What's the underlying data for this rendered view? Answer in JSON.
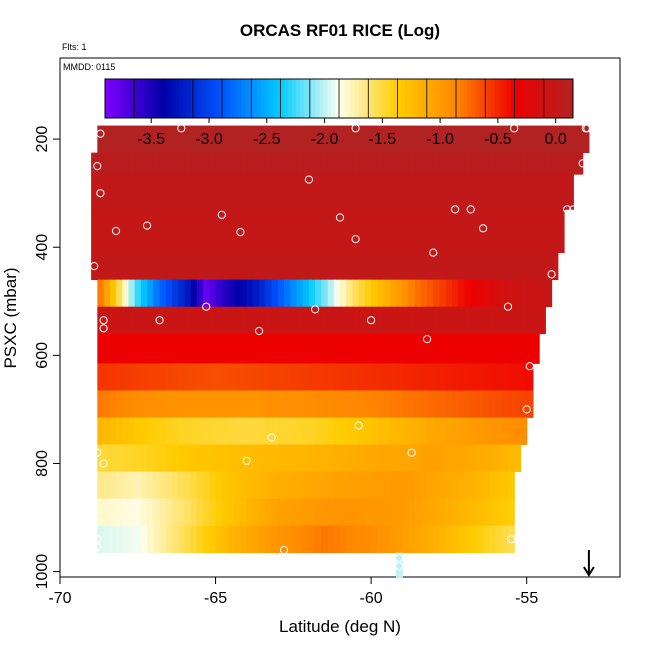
{
  "chart_data": {
    "type": "heatmap",
    "title": "ORCAS RF01 RICE (Log)",
    "flights_note": "Flts: 1",
    "date_note": "MMDD: 0115",
    "xlabel": "Latitude (deg N)",
    "ylabel": "PSXC (mbar)",
    "xlim": [
      -70,
      -52
    ],
    "ylim": [
      1010,
      50
    ],
    "x_ticks": [
      -70,
      -65,
      -60,
      -55
    ],
    "x_tick_labels": [
      "-70",
      "-65",
      "-60",
      "-55"
    ],
    "y_ticks": [
      200,
      400,
      600,
      800,
      1000
    ],
    "y_tick_labels": [
      "200",
      "400",
      "600",
      "800",
      "1000"
    ],
    "colorbar": {
      "range": [
        -3.9,
        0.15
      ],
      "ticks": [
        -3.5,
        -3.0,
        -2.5,
        -2.0,
        -1.5,
        -1.0,
        -0.5,
        0.0
      ],
      "tick_labels": [
        "-3.5",
        "-3.0",
        "-2.5",
        "-2.0",
        "-1.5",
        "-1.0",
        "-0.5",
        "0.0"
      ],
      "colors": [
        "#7f00ff",
        "#0000aa",
        "#0055ff",
        "#00ccff",
        "#ffffee",
        "#ffcc00",
        "#ff8800",
        "#ee0000",
        "#b22222"
      ]
    },
    "rows": [
      {
        "p_top": 175,
        "p_bot": 225,
        "x_min": -68.8,
        "x_max": -53.0,
        "type": "flat",
        "value": 0.15
      },
      {
        "p_top": 225,
        "p_bot": 265,
        "x_min": -69.0,
        "x_max": -53.2,
        "type": "flat",
        "value": 0.08
      },
      {
        "p_top": 265,
        "p_bot": 330,
        "x_min": -69.0,
        "x_max": -53.5,
        "type": "flat",
        "value": 0.02
      },
      {
        "p_top": 330,
        "p_bot": 410,
        "x_min": -69.0,
        "x_max": -53.8,
        "type": "flat",
        "value": 0.0
      },
      {
        "p_top": 410,
        "p_bot": 460,
        "x_min": -69.0,
        "x_max": -54.0,
        "type": "flat",
        "value": 0.02
      },
      {
        "p_top": 460,
        "p_bot": 510,
        "x_min": -68.8,
        "x_max": -54.2,
        "type": "knots",
        "knots": [
          [
            -68.8,
            -0.7
          ],
          [
            -68.2,
            -1.4
          ],
          [
            -67.6,
            -2.2
          ],
          [
            -66.8,
            -2.8
          ],
          [
            -65.8,
            -3.3
          ],
          [
            -65.3,
            -3.8
          ],
          [
            -64.6,
            -3.5
          ],
          [
            -63.6,
            -3.2
          ],
          [
            -62.6,
            -2.7
          ],
          [
            -61.6,
            -2.2
          ],
          [
            -60.6,
            -1.6
          ],
          [
            -59.6,
            -1.2
          ],
          [
            -58.6,
            -0.8
          ],
          [
            -57.6,
            -0.55
          ],
          [
            -56.6,
            -0.3
          ],
          [
            -55.6,
            -0.1
          ],
          [
            -54.2,
            0.0
          ]
        ]
      },
      {
        "p_top": 510,
        "p_bot": 560,
        "x_min": -68.8,
        "x_max": -54.4,
        "type": "flat",
        "value": -0.05
      },
      {
        "p_top": 560,
        "p_bot": 615,
        "x_min": -68.8,
        "x_max": -54.6,
        "type": "flat",
        "value": -0.35
      },
      {
        "p_top": 615,
        "p_bot": 665,
        "x_min": -68.8,
        "x_max": -54.8,
        "type": "knots",
        "knots": [
          [
            -68.8,
            -0.55
          ],
          [
            -67.0,
            -0.6
          ],
          [
            -65.0,
            -0.65
          ],
          [
            -63.0,
            -0.6
          ],
          [
            -61.0,
            -0.55
          ],
          [
            -59.0,
            -0.5
          ],
          [
            -57.0,
            -0.45
          ],
          [
            -54.8,
            -0.4
          ]
        ]
      },
      {
        "p_top": 665,
        "p_bot": 715,
        "x_min": -68.8,
        "x_max": -54.8,
        "type": "knots",
        "knots": [
          [
            -68.8,
            -0.8
          ],
          [
            -67.5,
            -0.9
          ],
          [
            -66.0,
            -0.95
          ],
          [
            -64.0,
            -0.95
          ],
          [
            -62.0,
            -0.9
          ],
          [
            -60.0,
            -0.85
          ],
          [
            -58.0,
            -0.75
          ],
          [
            -56.0,
            -0.65
          ],
          [
            -54.8,
            -0.6
          ]
        ]
      },
      {
        "p_top": 715,
        "p_bot": 765,
        "x_min": -68.8,
        "x_max": -55.0,
        "type": "knots",
        "knots": [
          [
            -68.8,
            -1.2
          ],
          [
            -67.5,
            -1.35
          ],
          [
            -66.0,
            -1.45
          ],
          [
            -64.0,
            -1.5
          ],
          [
            -62.0,
            -1.45
          ],
          [
            -60.0,
            -1.3
          ],
          [
            -58.0,
            -1.1
          ],
          [
            -56.0,
            -0.95
          ],
          [
            -55.0,
            -0.9
          ]
        ]
      },
      {
        "p_top": 765,
        "p_bot": 815,
        "x_min": -68.8,
        "x_max": -55.2,
        "type": "knots",
        "knots": [
          [
            -68.8,
            -1.5
          ],
          [
            -67.5,
            -1.45
          ],
          [
            -66.0,
            -1.35
          ],
          [
            -64.0,
            -1.25
          ],
          [
            -62.0,
            -1.2
          ],
          [
            -60.0,
            -1.1
          ],
          [
            -58.0,
            -1.05
          ],
          [
            -56.0,
            -1.15
          ],
          [
            -55.2,
            -1.25
          ]
        ]
      },
      {
        "p_top": 815,
        "p_bot": 865,
        "x_min": -68.8,
        "x_max": -55.4,
        "type": "knots",
        "knots": [
          [
            -68.8,
            -1.65
          ],
          [
            -67.5,
            -1.75
          ],
          [
            -66.0,
            -1.55
          ],
          [
            -64.5,
            -1.3
          ],
          [
            -63.0,
            -1.15
          ],
          [
            -61.0,
            -1.05
          ],
          [
            -59.0,
            -1.0
          ],
          [
            -57.0,
            -1.15
          ],
          [
            -55.4,
            -1.35
          ]
        ]
      },
      {
        "p_top": 865,
        "p_bot": 915,
        "x_min": -68.8,
        "x_max": -55.4,
        "type": "knots",
        "knots": [
          [
            -68.8,
            -1.8
          ],
          [
            -67.5,
            -1.85
          ],
          [
            -66.0,
            -1.6
          ],
          [
            -64.5,
            -1.3
          ],
          [
            -63.0,
            -1.05
          ],
          [
            -61.0,
            -0.95
          ],
          [
            -59.0,
            -1.0
          ],
          [
            -57.0,
            -1.2
          ],
          [
            -55.4,
            -1.4
          ]
        ]
      },
      {
        "p_top": 915,
        "p_bot": 965,
        "x_min": -68.8,
        "x_max": -55.4,
        "type": "knots",
        "knots": [
          [
            -68.8,
            -1.95
          ],
          [
            -67.5,
            -1.9
          ],
          [
            -66.0,
            -1.55
          ],
          [
            -64.5,
            -1.2
          ],
          [
            -63.0,
            -0.95
          ],
          [
            -61.5,
            -0.8
          ],
          [
            -60.0,
            -0.9
          ],
          [
            -58.0,
            -1.15
          ],
          [
            -56.5,
            -1.4
          ],
          [
            -55.4,
            -1.55
          ]
        ]
      },
      {
        "p_top": 965,
        "p_bot": 1010,
        "x_min": -59.2,
        "x_max": -59.0,
        "type": "flat",
        "value": -2.0
      }
    ],
    "points": [
      [
        -68.7,
        190
      ],
      [
        -68.8,
        250
      ],
      [
        -68.7,
        300
      ],
      [
        -68.9,
        435
      ],
      [
        -68.2,
        370
      ],
      [
        -67.2,
        360
      ],
      [
        -66.1,
        180
      ],
      [
        -64.8,
        340
      ],
      [
        -64.2,
        372
      ],
      [
        -62.0,
        275
      ],
      [
        -61.0,
        345
      ],
      [
        -60.5,
        180
      ],
      [
        -60.5,
        385
      ],
      [
        -58.0,
        410
      ],
      [
        -57.3,
        330
      ],
      [
        -56.8,
        330
      ],
      [
        -56.4,
        365
      ],
      [
        -55.4,
        180
      ],
      [
        -54.2,
        450
      ],
      [
        -53.7,
        330
      ],
      [
        -53.5,
        330
      ],
      [
        -53.2,
        245
      ],
      [
        -53.1,
        180
      ],
      [
        -53.05,
        180
      ],
      [
        -53.0,
        265
      ],
      [
        -68.6,
        535
      ],
      [
        -68.6,
        550
      ],
      [
        -66.8,
        535
      ],
      [
        -65.3,
        510
      ],
      [
        -63.6,
        555
      ],
      [
        -61.8,
        515
      ],
      [
        -60.0,
        535
      ],
      [
        -58.2,
        570
      ],
      [
        -55.6,
        510
      ],
      [
        -54.9,
        620
      ],
      [
        -55.0,
        700
      ],
      [
        -63.2,
        752
      ],
      [
        -60.4,
        730
      ],
      [
        -58.7,
        780
      ],
      [
        -64.0,
        795
      ],
      [
        -68.8,
        780
      ],
      [
        -68.6,
        800
      ],
      [
        -68.8,
        940
      ],
      [
        -68.8,
        955
      ],
      [
        -62.8,
        960
      ],
      [
        -59.1,
        975
      ],
      [
        -59.1,
        990
      ],
      [
        -55.5,
        940
      ]
    ],
    "arrow": {
      "x": -53.0,
      "p_from": 960,
      "p_to": 1010
    }
  }
}
